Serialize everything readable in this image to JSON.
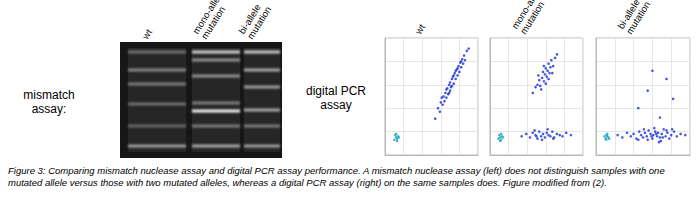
{
  "figure": {
    "mismatch_assay": {
      "label": "mismatch assay:",
      "lanes": [
        "wt",
        "mono-allele mutation",
        "bi-allele mutation"
      ]
    },
    "digital_pcr_assay": {
      "label": "digital PCR assay"
    },
    "caption": "Figure 3: Comparing mismatch nuclease assay and digital PCR assay performance. A mismatch nuclease assay (left) does not distinguish samples with one mutated allele versus those with two mutated alleles, whereas a digital PCR assay (right) on the same samples does. Figure modified from (2)."
  },
  "chart_data": [
    {
      "type": "scatter",
      "title": "wt",
      "xlim": [
        0,
        10
      ],
      "ylim": [
        0,
        10
      ],
      "xticks": [
        0,
        2,
        4,
        6,
        8,
        10
      ],
      "yticks": [
        0,
        2,
        4,
        6,
        8,
        10
      ],
      "grid": true,
      "tick_labels": false,
      "series": [
        {
          "color": "#22a9bf",
          "x": [
            1.0,
            1.2,
            1.3,
            1.4,
            1.1,
            1.5,
            1.3,
            1.2
          ],
          "values": [
            1.3,
            1.5,
            1.4,
            1.6,
            1.7,
            1.5,
            1.2,
            1.8
          ]
        },
        {
          "color": "#2337d9",
          "x": [
            5.4,
            5.7,
            5.9,
            6.0,
            6.2,
            6.3,
            6.4,
            6.5,
            6.6,
            6.7,
            6.8,
            6.9,
            7.0,
            7.0,
            7.1,
            7.2,
            7.2,
            7.3,
            7.4,
            7.5,
            7.6,
            7.7,
            7.8,
            7.9,
            8.0,
            8.1,
            8.2,
            8.3,
            8.4,
            8.5,
            8.6,
            8.8,
            9.0,
            6.1,
            6.6,
            7.4,
            7.8,
            8.2,
            6.9,
            7.6
          ],
          "values": [
            3.1,
            4.0,
            3.7,
            4.5,
            4.3,
            5.0,
            4.6,
            5.3,
            4.9,
            5.7,
            5.2,
            6.0,
            5.5,
            6.2,
            5.8,
            6.5,
            5.9,
            6.7,
            6.1,
            7.0,
            6.5,
            7.3,
            6.8,
            7.6,
            7.1,
            7.9,
            7.5,
            8.2,
            7.8,
            8.5,
            8.1,
            8.9,
            9.1,
            4.9,
            5.6,
            6.8,
            7.4,
            8.0,
            5.3,
            7.2
          ]
        }
      ]
    },
    {
      "type": "scatter",
      "title": "mono-allele mutation",
      "xlim": [
        0,
        10
      ],
      "ylim": [
        0,
        10
      ],
      "xticks": [
        0,
        2,
        4,
        6,
        8,
        10
      ],
      "yticks": [
        0,
        2,
        4,
        6,
        8,
        10
      ],
      "grid": true,
      "tick_labels": false,
      "series": [
        {
          "color": "#22a9bf",
          "x": [
            0.9,
            1.1,
            1.2,
            1.0,
            1.3,
            1.1,
            1.4,
            1.2
          ],
          "values": [
            1.4,
            1.5,
            1.3,
            1.7,
            1.6,
            1.2,
            1.5,
            1.8
          ]
        },
        {
          "color": "#2337d9",
          "x": [
            4.6,
            4.9,
            5.1,
            5.3,
            5.4,
            5.6,
            5.7,
            5.8,
            5.9,
            6.0,
            6.1,
            6.2,
            6.3,
            6.4,
            6.5,
            6.6,
            6.8,
            7.0,
            7.2,
            5.5,
            6.0,
            6.3,
            5.8,
            6.7,
            5.2
          ],
          "values": [
            5.3,
            5.8,
            6.0,
            6.4,
            5.9,
            6.6,
            7.1,
            6.3,
            6.9,
            7.4,
            6.7,
            7.2,
            7.8,
            7.0,
            7.5,
            8.1,
            7.6,
            8.3,
            8.6,
            5.6,
            6.1,
            6.5,
            7.6,
            7.0,
            6.8
          ]
        },
        {
          "color": "#2337d9",
          "x": [
            3.4,
            3.9,
            4.3,
            4.6,
            4.9,
            5.1,
            5.3,
            5.5,
            5.7,
            5.9,
            6.1,
            6.3,
            6.5,
            6.7,
            6.9,
            7.2,
            7.5,
            7.8,
            8.2,
            8.7,
            4.8,
            5.6,
            6.2,
            6.8,
            5.0
          ],
          "values": [
            1.6,
            1.8,
            1.5,
            1.9,
            1.7,
            1.4,
            2.0,
            1.6,
            1.8,
            1.5,
            1.9,
            1.7,
            1.6,
            2.0,
            1.5,
            1.8,
            1.7,
            1.6,
            1.9,
            1.7,
            2.1,
            1.3,
            2.2,
            1.4,
            1.6
          ]
        }
      ]
    },
    {
      "type": "scatter",
      "title": "bi-allele mutation",
      "xlim": [
        0,
        10
      ],
      "ylim": [
        0,
        10
      ],
      "xticks": [
        0,
        2,
        4,
        6,
        8,
        10
      ],
      "yticks": [
        0,
        2,
        4,
        6,
        8,
        10
      ],
      "grid": true,
      "tick_labels": false,
      "series": [
        {
          "color": "#22a9bf",
          "x": [
            1.0,
            1.2,
            1.1,
            1.3,
            0.9,
            1.2,
            1.4,
            1.1
          ],
          "values": [
            1.4,
            1.6,
            1.3,
            1.5,
            1.6,
            1.8,
            1.4,
            1.7
          ]
        },
        {
          "color": "#2337d9",
          "x": [
            2.3,
            2.8,
            3.3,
            3.7,
            4.0,
            4.3,
            4.6,
            4.8,
            5.0,
            5.2,
            5.4,
            5.6,
            5.8,
            6.0,
            6.1,
            6.3,
            6.5,
            6.6,
            6.8,
            7.0,
            7.2,
            7.4,
            7.6,
            7.8,
            8.0,
            8.3,
            8.6,
            9.0,
            9.5,
            5.5,
            6.2,
            6.9,
            7.5,
            5.9,
            6.4,
            7.1,
            4.5,
            8.1,
            5.1,
            6.7
          ],
          "values": [
            1.7,
            1.5,
            1.9,
            1.6,
            1.8,
            1.4,
            2.0,
            1.7,
            1.5,
            1.9,
            1.6,
            2.1,
            1.8,
            1.4,
            1.7,
            2.0,
            1.6,
            1.9,
            1.5,
            1.8,
            2.2,
            1.6,
            1.9,
            1.4,
            1.7,
            2.0,
            1.6,
            1.8,
            1.7,
            1.3,
            2.3,
            1.2,
            2.1,
            1.6,
            1.8,
            1.5,
            1.3,
            2.2,
            2.2,
            1.1
          ]
        },
        {
          "color": "#2337d9",
          "x": [
            4.5,
            5.5,
            6.8,
            7.5,
            8.2,
            6.0
          ],
          "values": [
            4.0,
            5.5,
            3.2,
            6.5,
            4.8,
            7.2
          ]
        }
      ]
    }
  ]
}
